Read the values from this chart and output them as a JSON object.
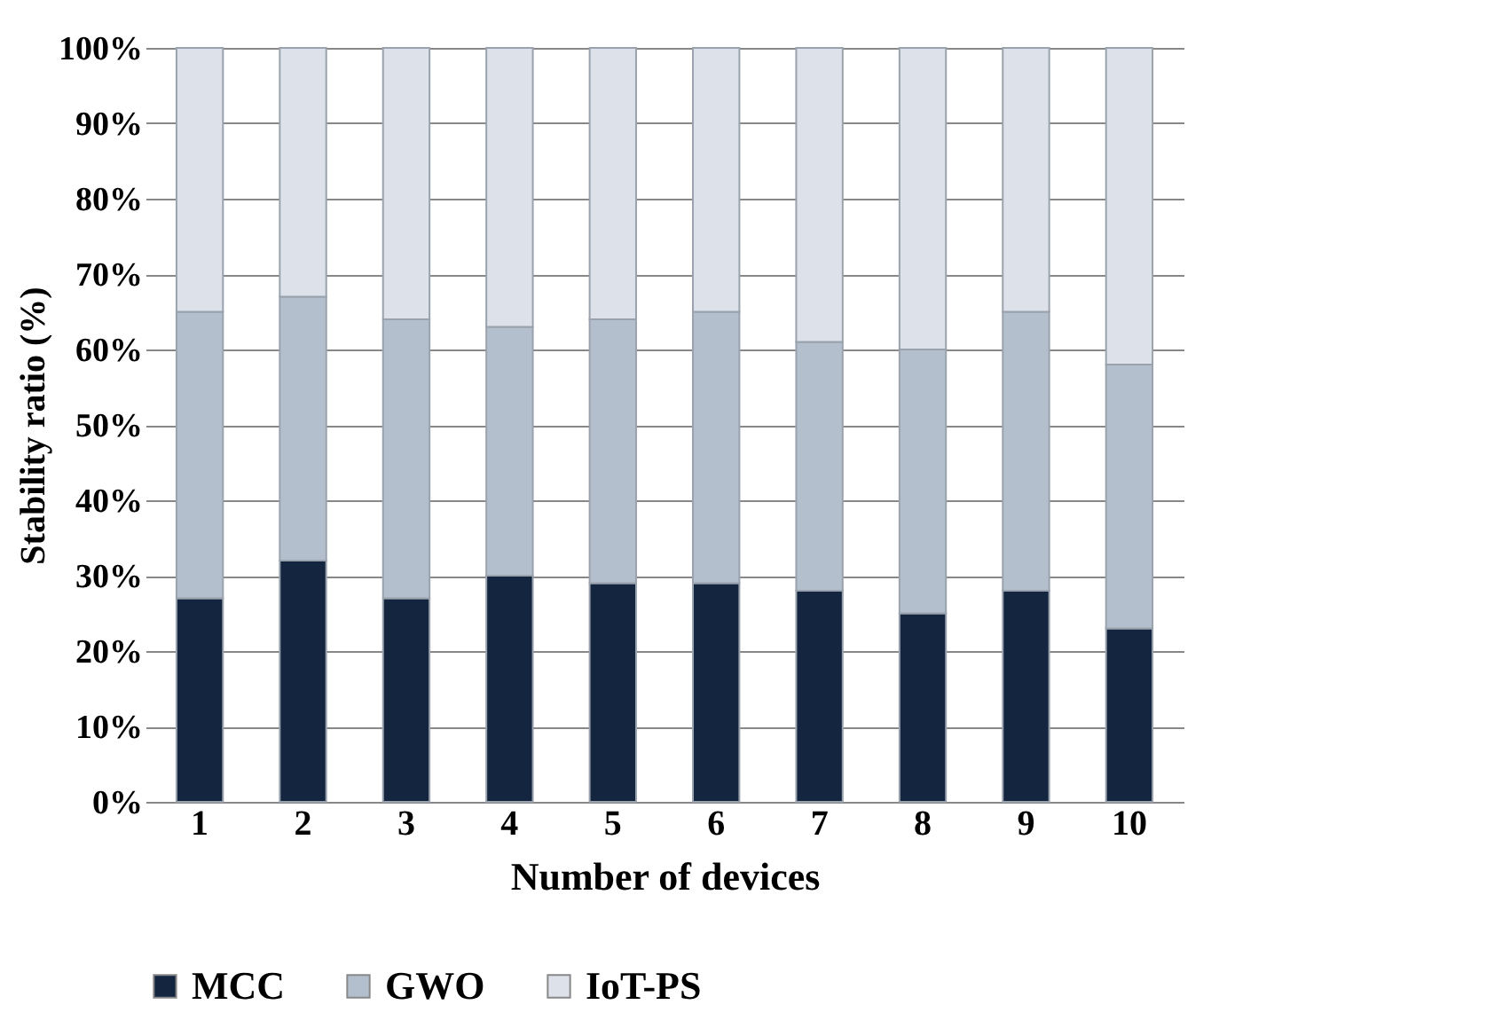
{
  "chart_data": {
    "type": "bar",
    "stacked": true,
    "xlabel": "Number of devices",
    "ylabel": "Stability ratio (%)",
    "categories": [
      "1",
      "2",
      "3",
      "4",
      "5",
      "6",
      "7",
      "8",
      "9",
      "10"
    ],
    "series": [
      {
        "name": "MCC",
        "color": "#14253f",
        "values": [
          27,
          32,
          27,
          30,
          29,
          29,
          28,
          25,
          28,
          23
        ]
      },
      {
        "name": "GWO",
        "color": "#b4bfcd",
        "values": [
          38,
          35,
          37,
          33,
          35,
          36,
          33,
          35,
          37,
          35
        ]
      },
      {
        "name": "IoT-PS",
        "color": "#dde2ea",
        "values": [
          35,
          33,
          36,
          37,
          36,
          35,
          39,
          40,
          35,
          42
        ]
      }
    ],
    "ylim": [
      0,
      100
    ],
    "yticks": [
      {
        "value": 0,
        "label": "0%"
      },
      {
        "value": 10,
        "label": "10%"
      },
      {
        "value": 20,
        "label": "20%"
      },
      {
        "value": 30,
        "label": "30%"
      },
      {
        "value": 40,
        "label": "40%"
      },
      {
        "value": 50,
        "label": "50%"
      },
      {
        "value": 60,
        "label": "60%"
      },
      {
        "value": 70,
        "label": "70%"
      },
      {
        "value": 80,
        "label": "80%"
      },
      {
        "value": 90,
        "label": "90%"
      },
      {
        "value": 100,
        "label": "100%"
      }
    ],
    "grid": true,
    "legend": "bottom"
  }
}
